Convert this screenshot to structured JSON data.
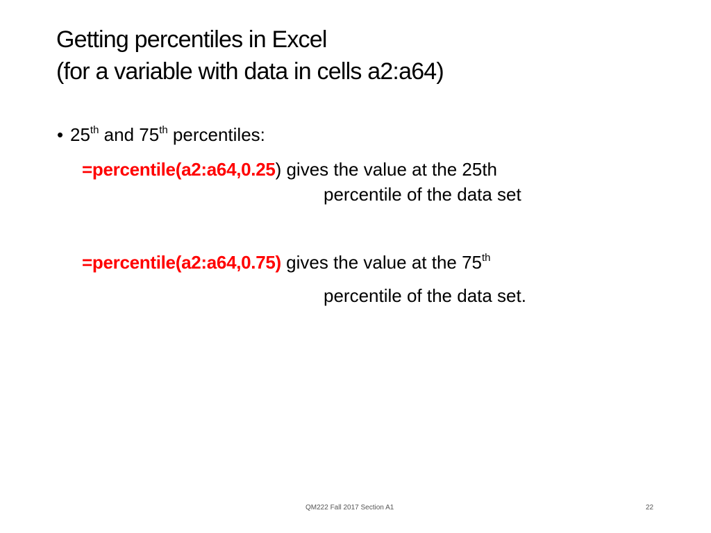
{
  "title": {
    "line1": "Getting percentiles in Excel",
    "line2": "(for a variable with data in cells a2:a64)"
  },
  "bullet": {
    "symbol": "•",
    "num1": "25",
    "sup1": "th",
    "mid": " and 75",
    "sup2": "th",
    "end": " percentiles:"
  },
  "formula1": {
    "formula": "=percentile(a2:a64,0.25",
    "close_paren": ")",
    "desc_line1": " gives the value at the 25th",
    "desc_line2": "percentile of the data set"
  },
  "formula2": {
    "formula": "=percentile(a2:a64,0.75)",
    "desc_line1": " gives the value at the 75",
    "desc_sup": "th",
    "desc_line2": "percentile of the data set."
  },
  "footer": {
    "center": "QM222 Fall 2017 Section A1",
    "page": "22"
  },
  "colors": {
    "formula": "#ff0000",
    "text": "#000000"
  }
}
